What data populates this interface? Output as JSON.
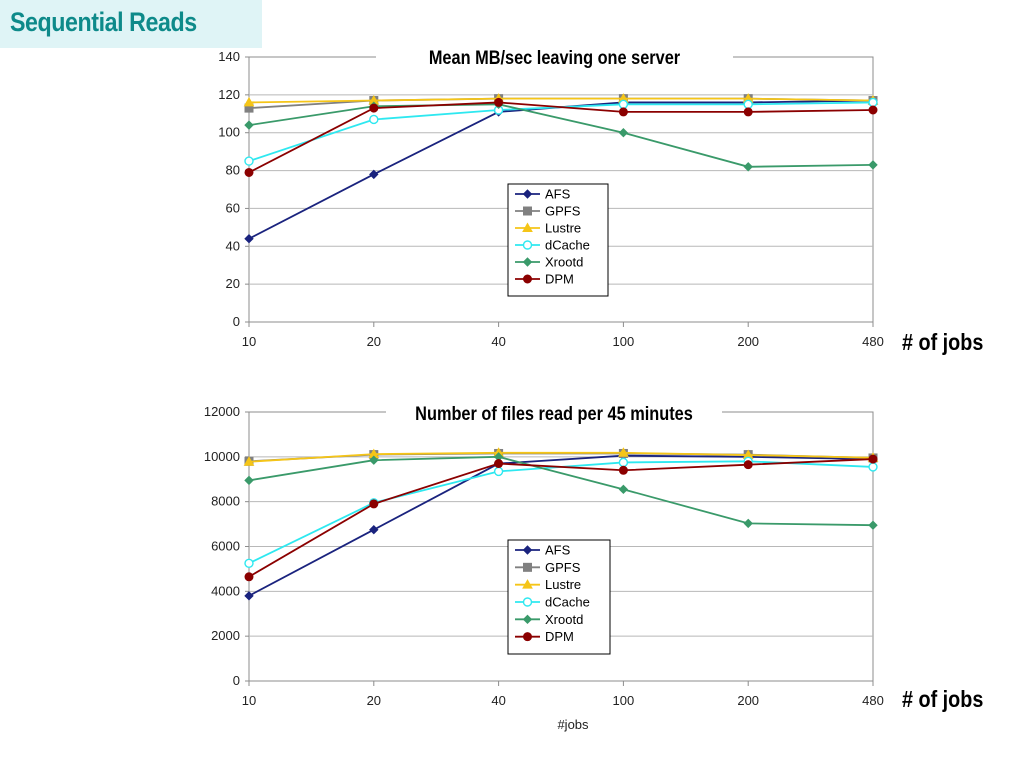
{
  "slide_title": "Sequential Reads",
  "side_labels": [
    "# of jobs",
    "# of jobs"
  ],
  "colors": {
    "AFS": "#1a237e",
    "GPFS": "#808080",
    "Lustre": "#f5c518",
    "dCache": "#2ee8f0",
    "Xrootd": "#3a9a6a",
    "DPM": "#8b0000"
  },
  "chart_data": [
    {
      "type": "line",
      "title": "Mean MB/sec leaving one server",
      "xlabel": "",
      "ylabel": "",
      "categories": [
        "10",
        "20",
        "40",
        "100",
        "200",
        "480"
      ],
      "ylim": [
        0,
        140
      ],
      "yticks": [
        "0",
        "20",
        "40",
        "60",
        "80",
        "100",
        "120",
        "140"
      ],
      "grid": true,
      "legend": "center",
      "series": [
        {
          "name": "AFS",
          "marker": "diamond",
          "values": [
            44,
            78,
            111,
            116,
            116,
            117
          ]
        },
        {
          "name": "GPFS",
          "marker": "square",
          "values": [
            113,
            117,
            118,
            118,
            118,
            117
          ]
        },
        {
          "name": "Lustre",
          "marker": "triangle",
          "values": [
            116,
            117,
            118,
            118,
            118,
            117
          ]
        },
        {
          "name": "dCache",
          "marker": "circle-open",
          "values": [
            85,
            107,
            112,
            115,
            115,
            116
          ]
        },
        {
          "name": "Xrootd",
          "marker": "diamond",
          "values": [
            104,
            114,
            115,
            100,
            82,
            83
          ]
        },
        {
          "name": "DPM",
          "marker": "circle",
          "values": [
            79,
            113,
            116,
            111,
            111,
            112
          ]
        }
      ]
    },
    {
      "type": "line",
      "title": "Number of files read per 45 minutes",
      "xlabel": "#jobs",
      "ylabel": "",
      "categories": [
        "10",
        "20",
        "40",
        "100",
        "200",
        "480"
      ],
      "ylim": [
        0,
        12000
      ],
      "yticks": [
        "0",
        "2000",
        "4000",
        "6000",
        "8000",
        "10000",
        "12000"
      ],
      "grid": true,
      "legend": "center",
      "series": [
        {
          "name": "AFS",
          "marker": "diamond",
          "values": [
            3800,
            6750,
            9700,
            10050,
            10000,
            9900
          ]
        },
        {
          "name": "GPFS",
          "marker": "square",
          "values": [
            9800,
            10100,
            10150,
            10150,
            10100,
            9950
          ]
        },
        {
          "name": "Lustre",
          "marker": "triangle",
          "values": [
            9780,
            10120,
            10180,
            10180,
            10080,
            9960
          ]
        },
        {
          "name": "dCache",
          "marker": "circle-open",
          "values": [
            5250,
            7950,
            9350,
            9750,
            9800,
            9550
          ]
        },
        {
          "name": "Xrootd",
          "marker": "diamond",
          "values": [
            8950,
            9850,
            10000,
            8550,
            7030,
            6950
          ]
        },
        {
          "name": "DPM",
          "marker": "circle",
          "values": [
            4650,
            7900,
            9700,
            9400,
            9650,
            9900
          ]
        }
      ]
    }
  ]
}
